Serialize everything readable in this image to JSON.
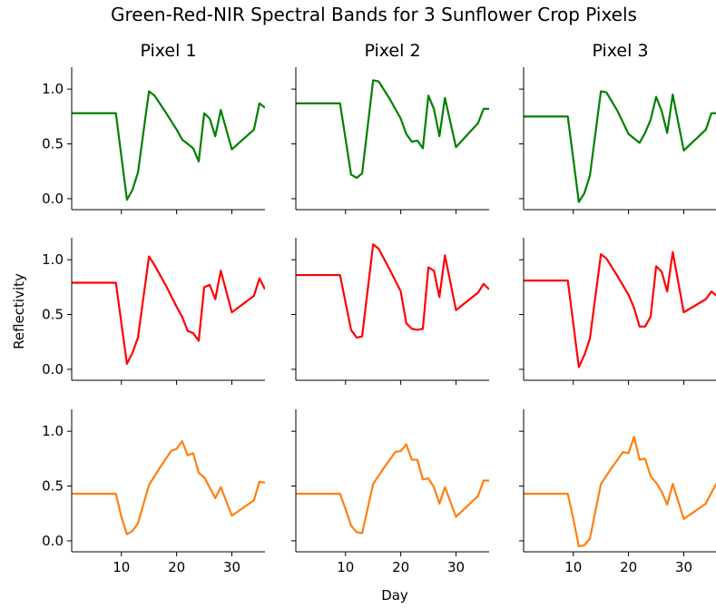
{
  "title": "Green-Red-NIR Spectral Bands for 3 Sunflower Crop Pixels",
  "ylabel": "Reflectivity",
  "xlabel": "Day",
  "colors": {
    "green": "#008000",
    "red": "#ff0000",
    "nir": "#ff7f0e"
  },
  "chart_data": {
    "type": "line",
    "title": "Green-Red-NIR Spectral Bands for 3 Sunflower Crop Pixels",
    "xlabel": "Day",
    "ylabel": "Reflectivity",
    "xlim": [
      1,
      36
    ],
    "ylim": [
      -0.1,
      1.2
    ],
    "xticks": [
      10,
      20,
      30
    ],
    "yticks": [
      0.0,
      0.5,
      1.0
    ],
    "grid": false,
    "layout": "3 rows (Green, Red, NIR) x 3 columns (Pixel 1, Pixel 2, Pixel 3), shared axes",
    "columns": [
      "Pixel 1",
      "Pixel 2",
      "Pixel 3"
    ],
    "rows": [
      {
        "color": "#008000",
        "series": [
          {
            "x": [
              1,
              9,
              11,
              12,
              13,
              15,
              16,
              18,
              20,
              21,
              22,
              23,
              24,
              25,
              26,
              27,
              28,
              30,
              34,
              35,
              36
            ],
            "y": [
              0.78,
              0.78,
              -0.01,
              0.08,
              0.24,
              0.98,
              0.94,
              0.79,
              0.63,
              0.54,
              0.5,
              0.46,
              0.34,
              0.78,
              0.73,
              0.57,
              0.81,
              0.45,
              0.63,
              0.87,
              0.83
            ]
          },
          {
            "x": [
              1,
              9,
              11,
              12,
              13,
              15,
              16,
              18,
              20,
              21,
              22,
              23,
              24,
              25,
              26,
              27,
              28,
              30,
              34,
              35,
              36
            ],
            "y": [
              0.87,
              0.87,
              0.22,
              0.19,
              0.23,
              1.08,
              1.07,
              0.91,
              0.73,
              0.59,
              0.52,
              0.53,
              0.46,
              0.94,
              0.82,
              0.57,
              0.92,
              0.47,
              0.69,
              0.82,
              0.82
            ]
          },
          {
            "x": [
              1,
              9,
              11,
              12,
              13,
              15,
              16,
              18,
              20,
              21,
              22,
              23,
              24,
              25,
              26,
              27,
              28,
              30,
              34,
              35,
              36
            ],
            "y": [
              0.75,
              0.75,
              -0.03,
              0.05,
              0.21,
              0.98,
              0.97,
              0.8,
              0.59,
              0.55,
              0.51,
              0.6,
              0.72,
              0.93,
              0.8,
              0.6,
              0.95,
              0.44,
              0.63,
              0.78,
              0.78
            ]
          }
        ]
      },
      {
        "color": "#ff0000",
        "series": [
          {
            "x": [
              1,
              9,
              11,
              12,
              13,
              15,
              16,
              18,
              20,
              21,
              22,
              23,
              24,
              25,
              26,
              27,
              28,
              30,
              34,
              35,
              36
            ],
            "y": [
              0.79,
              0.79,
              0.05,
              0.15,
              0.29,
              1.03,
              0.95,
              0.77,
              0.57,
              0.48,
              0.35,
              0.33,
              0.26,
              0.75,
              0.77,
              0.64,
              0.9,
              0.52,
              0.67,
              0.83,
              0.73
            ]
          },
          {
            "x": [
              1,
              9,
              11,
              12,
              13,
              15,
              16,
              18,
              20,
              21,
              22,
              23,
              24,
              25,
              26,
              27,
              28,
              30,
              34,
              35,
              36
            ],
            "y": [
              0.86,
              0.86,
              0.36,
              0.29,
              0.3,
              1.14,
              1.1,
              0.91,
              0.71,
              0.42,
              0.37,
              0.36,
              0.37,
              0.93,
              0.9,
              0.66,
              1.04,
              0.54,
              0.7,
              0.78,
              0.73
            ]
          },
          {
            "x": [
              1,
              9,
              11,
              12,
              13,
              15,
              16,
              18,
              20,
              21,
              22,
              23,
              24,
              25,
              26,
              27,
              28,
              30,
              34,
              35,
              36
            ],
            "y": [
              0.81,
              0.81,
              0.02,
              0.13,
              0.28,
              1.05,
              1.01,
              0.85,
              0.68,
              0.56,
              0.39,
              0.39,
              0.48,
              0.94,
              0.89,
              0.71,
              1.07,
              0.52,
              0.64,
              0.71,
              0.67
            ]
          }
        ]
      },
      {
        "color": "#ff7f0e",
        "series": [
          {
            "x": [
              1,
              9,
              10,
              11,
              12,
              13,
              15,
              17,
              19,
              20,
              21,
              22,
              23,
              24,
              25,
              27,
              28,
              30,
              34,
              35,
              36
            ],
            "y": [
              0.43,
              0.43,
              0.22,
              0.06,
              0.09,
              0.16,
              0.51,
              0.67,
              0.82,
              0.84,
              0.91,
              0.78,
              0.8,
              0.62,
              0.58,
              0.39,
              0.49,
              0.23,
              0.37,
              0.54,
              0.53
            ]
          },
          {
            "x": [
              1,
              9,
              10,
              11,
              12,
              13,
              15,
              17,
              19,
              20,
              21,
              22,
              23,
              24,
              25,
              26,
              27,
              28,
              30,
              34,
              35,
              36
            ],
            "y": [
              0.43,
              0.43,
              0.29,
              0.14,
              0.08,
              0.07,
              0.52,
              0.67,
              0.81,
              0.82,
              0.88,
              0.74,
              0.74,
              0.56,
              0.57,
              0.49,
              0.34,
              0.49,
              0.22,
              0.41,
              0.55,
              0.55
            ]
          },
          {
            "x": [
              1,
              9,
              10,
              11,
              12,
              13,
              15,
              17,
              19,
              20,
              21,
              22,
              23,
              24,
              25,
              26,
              27,
              28,
              30,
              34,
              35,
              36
            ],
            "y": [
              0.43,
              0.43,
              0.2,
              -0.05,
              -0.04,
              0.02,
              0.52,
              0.67,
              0.81,
              0.8,
              0.95,
              0.74,
              0.75,
              0.59,
              0.53,
              0.45,
              0.33,
              0.52,
              0.2,
              0.34,
              0.44,
              0.53
            ]
          }
        ]
      }
    ]
  }
}
